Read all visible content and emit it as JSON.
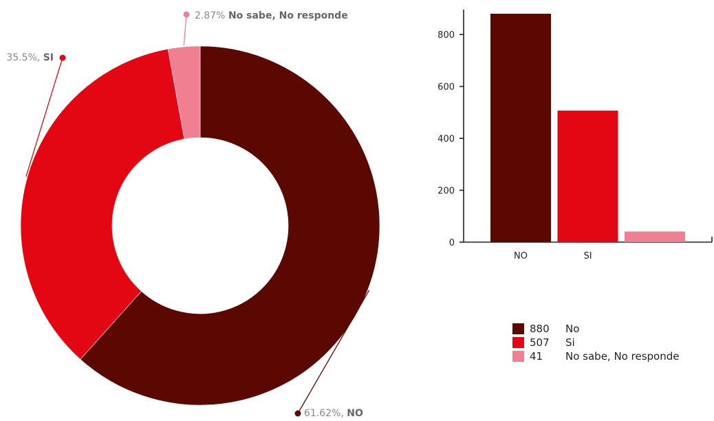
{
  "chart_data": [
    {
      "type": "pie",
      "variant": "donut",
      "slices": [
        {
          "key": "no",
          "value": 61.62,
          "color": "#5a0800",
          "label_value": "61.62%,",
          "label_name": "NO"
        },
        {
          "key": "si",
          "value": 35.5,
          "color": "#e30613",
          "label_value": "35.5%,",
          "label_name": "SI"
        },
        {
          "key": "nsnr",
          "value": 2.87,
          "color": "#f07f92",
          "label_value": "2.87%",
          "label_name": "No sabe, No responde"
        }
      ]
    },
    {
      "type": "bar",
      "categories": [
        "NO",
        "SI",
        ""
      ],
      "values": [
        880,
        507,
        41
      ],
      "colors": [
        "#5a0800",
        "#e30613",
        "#f07f92"
      ],
      "ylim": [
        0,
        880
      ],
      "yticks": [
        0,
        200,
        400,
        600,
        800
      ],
      "title": "",
      "xlabel": "",
      "ylabel": ""
    }
  ],
  "legend": {
    "items": [
      {
        "count": "880",
        "name": "No",
        "color": "#5a0800"
      },
      {
        "count": "507",
        "name": "Si",
        "color": "#e30613"
      },
      {
        "count": "41",
        "name": "No sabe, No responde",
        "color": "#f07f92"
      }
    ]
  }
}
